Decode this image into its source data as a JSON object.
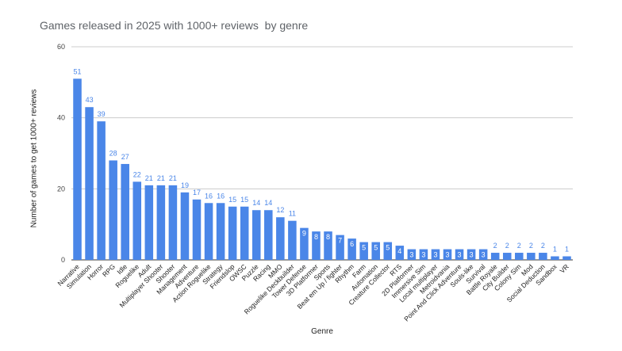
{
  "chart_data": {
    "type": "bar",
    "title": "Games released in 2025 with 1000+ reviews  by genre",
    "xlabel": "Genre",
    "ylabel": "Number of games to get 1000+ reviews",
    "ylim": [
      0,
      60
    ],
    "yticks": [
      "0",
      "20",
      "40",
      "60"
    ],
    "grid": true,
    "legend": "none",
    "bar_color": "#4a86e8",
    "label_color": "#4a86e8",
    "categories": [
      "Narrative",
      "Simulation",
      "Horror",
      "RPG",
      "Idle",
      "Roguelike",
      "Adult",
      "Multiplayer Shooter",
      "Shooter",
      "Management",
      "Adventure",
      "Action Roguelike",
      "Strategy",
      "Friendslop",
      "OWSC",
      "Puzzle",
      "Racing",
      "MMO",
      "Roguelike Deckbuilder",
      "Tower Defense",
      "3D Platformer",
      "Sports",
      "Beat em Up / fighter",
      "Rhythm",
      "Farm",
      "Automation",
      "Creature Collector",
      "RTS",
      "2D Platformer",
      "Immersive Sim",
      "Local multiplayer",
      "Metroidvania",
      "Point And Click Adventure",
      "Souls-like",
      "Survival",
      "Battle Royale",
      "City Builder",
      "Colony Sim",
      "Mod",
      "Social Deduction",
      "Sandbox",
      "VR"
    ],
    "values": [
      51,
      43,
      39,
      28,
      27,
      22,
      21,
      21,
      21,
      19,
      17,
      16,
      16,
      15,
      15,
      14,
      14,
      12,
      11,
      9,
      8,
      8,
      7,
      6,
      5,
      5,
      5,
      4,
      3,
      3,
      3,
      3,
      3,
      3,
      3,
      2,
      2,
      2,
      2,
      2,
      1,
      1
    ]
  }
}
